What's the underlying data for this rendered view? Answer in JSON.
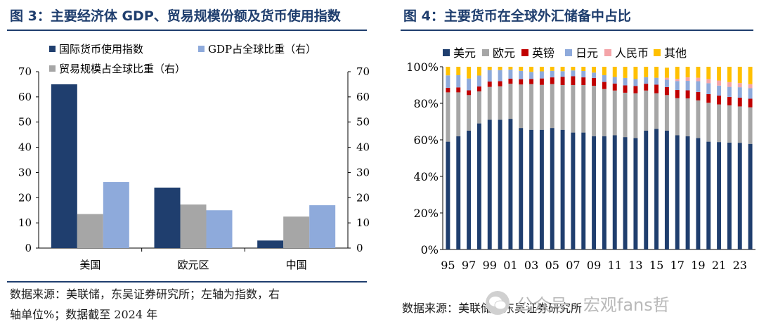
{
  "figures": [
    {
      "title": "图 3：主要经济体 GDP、贸易规模份额及货币使用指数",
      "source": [
        "数据来源：美联储，东吴证券研究所；左轴为指数，右",
        "轴单位%；数据截至 2024 年"
      ]
    },
    {
      "title": "图 4：主要货币在全球外汇储备中占比",
      "source": [
        "数据来源：美联储，东吴证券研究所"
      ]
    }
  ],
  "watermark": "公众号 · 宏观fans哲",
  "colors": {
    "navy": "#1f3e6e",
    "gray": "#a6a6a6",
    "lightblue": "#8eaadb",
    "red": "#c00000",
    "pink": "#f4a4a8",
    "yellow": "#ffc000"
  },
  "chart_data": [
    {
      "type": "bar",
      "categories": [
        "美国",
        "欧元区",
        "中国"
      ],
      "series": [
        {
          "name": "国际货币使用指数",
          "axis": "left",
          "values": [
            65,
            24,
            3
          ],
          "color": "#1f3e6e"
        },
        {
          "name": "贸易规模占全球比重（右）",
          "axis": "right",
          "values": [
            13.5,
            17.3,
            12.5
          ],
          "color": "#a6a6a6"
        },
        {
          "name": "GDP占全球比重（右）",
          "axis": "right",
          "values": [
            26.2,
            15,
            17
          ],
          "color": "#8eaadb"
        }
      ],
      "ylim_left": [
        0,
        70
      ],
      "ylim_right": [
        0,
        70
      ],
      "yticks": [
        0,
        10,
        20,
        30,
        40,
        50,
        60,
        70
      ],
      "legend": "top-left",
      "grid": false
    },
    {
      "type": "bar",
      "stacked": true,
      "x": [
        1995,
        1996,
        1997,
        1998,
        1999,
        2000,
        2001,
        2002,
        2003,
        2004,
        2005,
        2006,
        2007,
        2008,
        2009,
        2010,
        2011,
        2012,
        2013,
        2014,
        2015,
        2016,
        2017,
        2018,
        2019,
        2020,
        2021,
        2022,
        2023,
        2024
      ],
      "xtick_labels": [
        "95",
        "97",
        "99",
        "01",
        "03",
        "05",
        "07",
        "09",
        "11",
        "13",
        "15",
        "17",
        "19",
        "21",
        "23"
      ],
      "series": [
        {
          "name": "美元",
          "color": "#1f3e6e",
          "values": [
            59,
            62,
            65,
            69,
            71,
            71,
            71.5,
            66.5,
            65.5,
            65.5,
            66.5,
            65.5,
            64,
            64,
            62,
            62,
            62.5,
            61.5,
            61,
            65,
            66,
            65,
            62.5,
            62,
            61,
            59,
            58.8,
            58.5,
            58.4,
            57.8
          ]
        },
        {
          "name": "欧元",
          "color": "#a6a6a6",
          "values": [
            27,
            24,
            19.5,
            17.5,
            18,
            18.3,
            19.2,
            23.8,
            25,
            24.6,
            24,
            24.5,
            26,
            26,
            27.6,
            25.8,
            24.5,
            24.3,
            24.5,
            22,
            19.5,
            19.5,
            20.3,
            20.7,
            20.6,
            21.3,
            20.6,
            20.4,
            19.9,
            20
          ]
        },
        {
          "name": "英镑",
          "color": "#c00000",
          "values": [
            2.5,
            2.7,
            2.6,
            2.7,
            2.9,
            2.8,
            2.8,
            2.9,
            2.8,
            3.5,
            3.7,
            4.5,
            4.8,
            4.2,
            4.3,
            3.9,
            3.8,
            4,
            4,
            3.7,
            4.7,
            4.4,
            4.5,
            4.4,
            4.6,
            4.7,
            4.8,
            4.6,
            4.8,
            4.7
          ]
        },
        {
          "name": "日元",
          "color": "#8eaadb",
          "values": [
            6.8,
            6.7,
            6.5,
            6,
            6.3,
            6.1,
            5,
            4.6,
            3.9,
            3.9,
            3.6,
            3.1,
            3.2,
            3.5,
            2.9,
            3.7,
            3.6,
            4.1,
            3.8,
            3.6,
            3.8,
            4,
            4.9,
            5.2,
            5.9,
            6,
            5.5,
            5.5,
            5.7,
            5.8
          ]
        },
        {
          "name": "人民币",
          "color": "#f4a4a8",
          "values": [
            0,
            0,
            0,
            0,
            0,
            0,
            0,
            0,
            0,
            0,
            0,
            0,
            0,
            0,
            0,
            0,
            0,
            0,
            0,
            0,
            0,
            1.1,
            1.2,
            1.9,
            1.9,
            2.3,
            2.8,
            2.6,
            2.3,
            2.2
          ]
        },
        {
          "name": "其他",
          "color": "#ffc000",
          "values": [
            4.7,
            4.6,
            6.4,
            4.8,
            1.8,
            1.8,
            1.5,
            2.2,
            2.8,
            2.5,
            2.2,
            2.4,
            2,
            2.3,
            3.2,
            4.6,
            5.6,
            6.1,
            6.7,
            5.7,
            6,
            5.5,
            6.6,
            5.8,
            6,
            6.7,
            7.5,
            8.4,
            8.9,
            9.5
          ]
        }
      ],
      "ylim": [
        0,
        100
      ],
      "yticks": [
        "0%",
        "20%",
        "40%",
        "60%",
        "80%",
        "100%"
      ],
      "legend": "top",
      "grid": false
    }
  ]
}
